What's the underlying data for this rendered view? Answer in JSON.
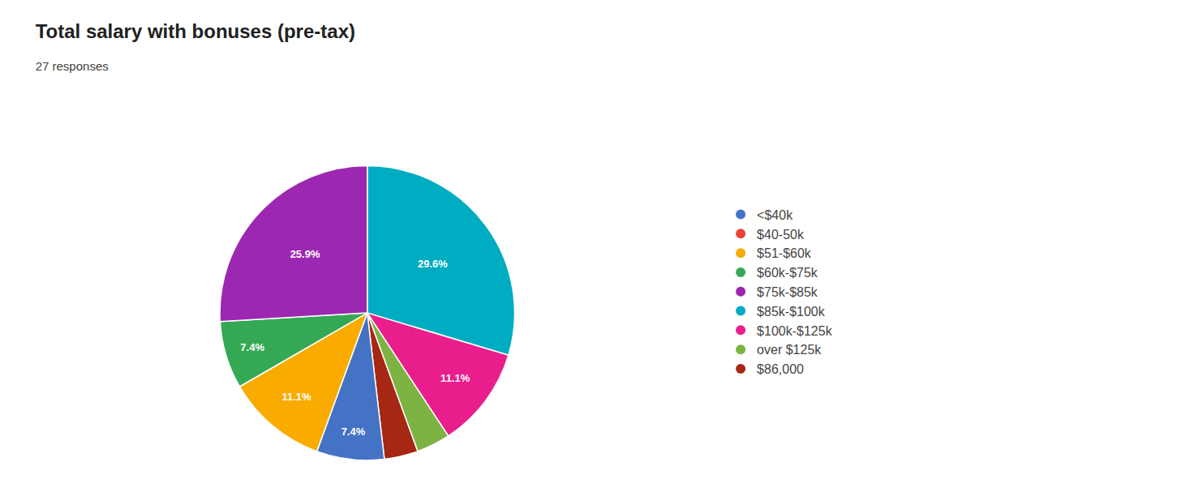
{
  "chart_data": {
    "type": "pie",
    "title": "Total salary with bonuses (pre-tax)",
    "subtitle": "27 responses",
    "categories": [
      "$85k-$100k",
      "$100k-$125k",
      "over $125k",
      "$86,000",
      "<$40k",
      "$51-$60k",
      "$60k-$75k",
      "$75k-$85k"
    ],
    "values": [
      29.6,
      11.1,
      3.7,
      3.7,
      7.4,
      11.1,
      7.4,
      25.9
    ],
    "value_labels": [
      "29.6%",
      "11.1%",
      null,
      null,
      "7.4%",
      "11.1%",
      "7.4%",
      "25.9%"
    ],
    "colors": [
      "#00ACC1",
      "#E91E8C",
      "#7CB342",
      "#A52714",
      "#4472C4",
      "#F9AB00",
      "#34A853",
      "#9C27B0"
    ],
    "data_labels": true,
    "legend": "right",
    "legend_entries": [
      {
        "name": "<$40k",
        "color": "#4472C4"
      },
      {
        "name": "$40-50k",
        "color": "#E84335"
      },
      {
        "name": "$51-$60k",
        "color": "#F9AB00"
      },
      {
        "name": "$60k-$75k",
        "color": "#34A853"
      },
      {
        "name": "$75k-$85k",
        "color": "#9C27B0"
      },
      {
        "name": "$85k-$100k",
        "color": "#00ACC1"
      },
      {
        "name": "$100k-$125k",
        "color": "#E91E8C"
      },
      {
        "name": "over $125k",
        "color": "#7CB342"
      },
      {
        "name": "$86,000",
        "color": "#A52714"
      }
    ]
  }
}
